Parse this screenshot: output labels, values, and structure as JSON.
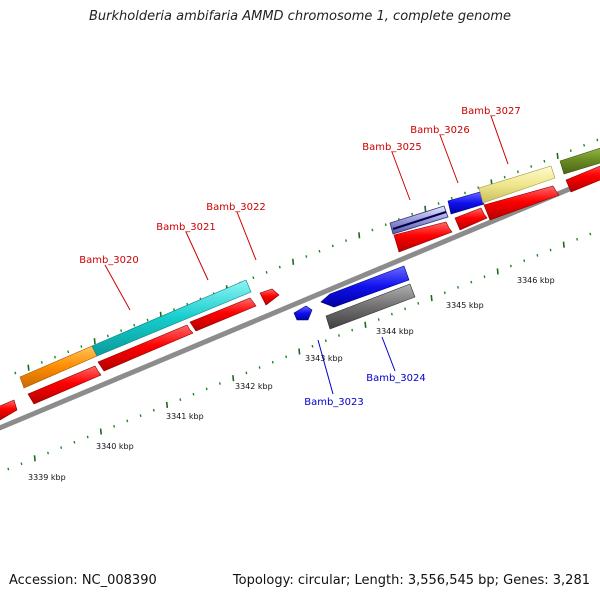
{
  "title": "Burkholderia ambifaria AMMD chromosome 1, complete genome",
  "footer": {
    "accession": "Accession: NC_008390",
    "topology": "Topology: circular; Length: 3,556,545 bp; Genes: 3,281"
  },
  "colors": {
    "forward_label": "#cc0000",
    "reverse_label": "#0000cc",
    "backbone": "#8c8c8c",
    "tick_major": "#1a6b1a",
    "tick_minor": "#1a8c1a"
  },
  "scale_labels": [
    "3339 kbp",
    "3340 kbp",
    "3341 kbp",
    "3342 kbp",
    "3343 kbp",
    "3344 kbp",
    "3345 kbp",
    "3346 kbp"
  ],
  "genes": [
    {
      "label": "Bamb_3020",
      "strand": "forward"
    },
    {
      "label": "Bamb_3021",
      "strand": "forward"
    },
    {
      "label": "Bamb_3022",
      "strand": "forward"
    },
    {
      "label": "Bamb_3023",
      "strand": "reverse"
    },
    {
      "label": "Bamb_3024",
      "strand": "reverse"
    },
    {
      "label": "Bamb_3025",
      "strand": "forward"
    },
    {
      "label": "Bamb_3026",
      "strand": "forward"
    },
    {
      "label": "Bamb_3027",
      "strand": "forward"
    }
  ]
}
